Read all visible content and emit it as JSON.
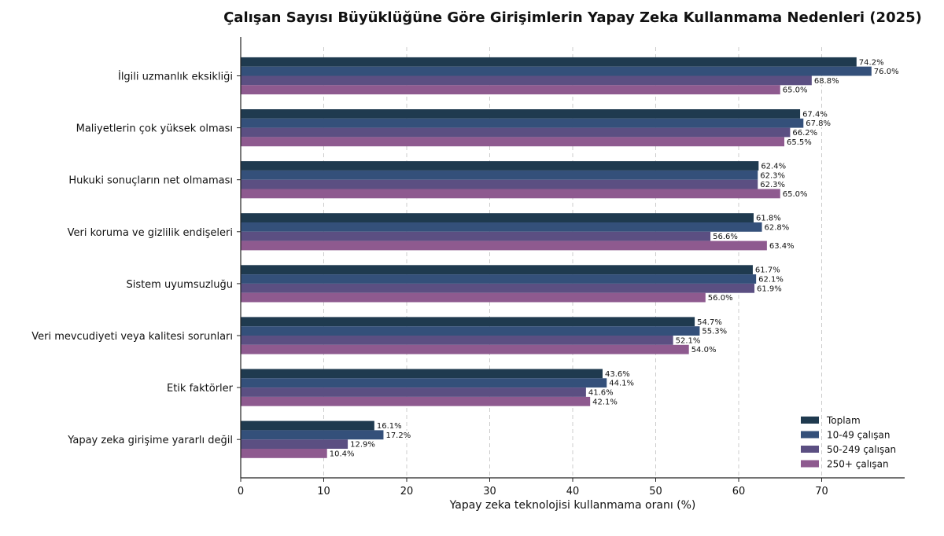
{
  "chart_data": {
    "type": "bar",
    "orientation": "horizontal",
    "title": "Çalışan Sayısı Büyüklüğüne Göre Girişimlerin Yapay Zeka Kullanmama Nedenleri (2025)",
    "xlabel": "Yapay zeka teknolojisi kullanmama oranı (%)",
    "ylabel": "",
    "xlim": [
      0,
      80
    ],
    "xticks": [
      "0",
      "10",
      "20",
      "30",
      "40",
      "50",
      "60",
      "70"
    ],
    "grid": "vertical-dashed",
    "legend_position": "bottom-right",
    "categories": [
      "İlgili uzmanlık eksikliği",
      "Maliyetlerin çok yüksek olması",
      "Hukuki sonuçların net olmaması",
      "Veri koruma ve gizlilik endişeleri",
      "Sistem uyumsuzluğu",
      "Veri mevcudiyeti veya kalitesi sorunları",
      "Etik faktörler",
      "Yapay zeka girişime yararlı değil"
    ],
    "series": [
      {
        "name": "Toplam",
        "color": "#1f3a4f",
        "values": [
          74.2,
          67.4,
          62.4,
          61.8,
          61.7,
          54.7,
          43.6,
          16.1
        ],
        "labels": [
          "74.2%",
          "67.4%",
          "62.4%",
          "61.8%",
          "61.7%",
          "54.7%",
          "43.6%",
          "16.1%"
        ]
      },
      {
        "name": "10-49 çalışan",
        "color": "#34507a",
        "values": [
          76.0,
          67.8,
          62.3,
          62.8,
          62.1,
          55.3,
          44.1,
          17.2
        ],
        "labels": [
          "76.0%",
          "67.8%",
          "62.3%",
          "62.8%",
          "62.1%",
          "55.3%",
          "44.1%",
          "17.2%"
        ]
      },
      {
        "name": "50-249 çalışan",
        "color": "#5b4f82",
        "values": [
          68.8,
          66.2,
          62.3,
          56.6,
          61.9,
          52.1,
          41.6,
          12.9
        ],
        "labels": [
          "68.8%",
          "66.2%",
          "62.3%",
          "56.6%",
          "61.9%",
          "52.1%",
          "41.6%",
          "12.9%"
        ]
      },
      {
        "name": "250+ çalışan",
        "color": "#8e5a8f",
        "values": [
          65.0,
          65.5,
          65.0,
          63.4,
          56.0,
          54.0,
          42.1,
          10.4
        ],
        "labels": [
          "65.0%",
          "65.5%",
          "65.0%",
          "63.4%",
          "56.0%",
          "54.0%",
          "42.1%",
          "10.4%"
        ]
      }
    ]
  }
}
